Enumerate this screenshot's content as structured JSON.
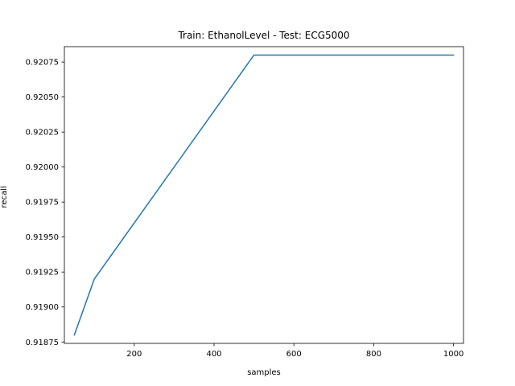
{
  "chart_data": {
    "type": "line",
    "title": "Train: EthanolLevel - Test: ECG5000",
    "xlabel": "samples",
    "ylabel": "recall",
    "xlim": [
      25,
      1025
    ],
    "ylim": [
      0.91874,
      0.92086
    ],
    "xticks": [
      200,
      400,
      600,
      800,
      1000
    ],
    "yticks": [
      0.91875,
      0.919,
      0.91925,
      0.9195,
      0.91975,
      0.92,
      0.92025,
      0.9205,
      0.92075
    ],
    "ytick_labels": [
      "0.91875",
      "0.91900",
      "0.91925",
      "0.91950",
      "0.91975",
      "0.92000",
      "0.92025",
      "0.92050",
      "0.92075"
    ],
    "grid": false,
    "series": [
      {
        "color": "#1f77b4",
        "x": [
          50,
          100,
          500,
          1000
        ],
        "y": [
          0.9188,
          0.9192,
          0.9208,
          0.9208
        ]
      }
    ]
  }
}
